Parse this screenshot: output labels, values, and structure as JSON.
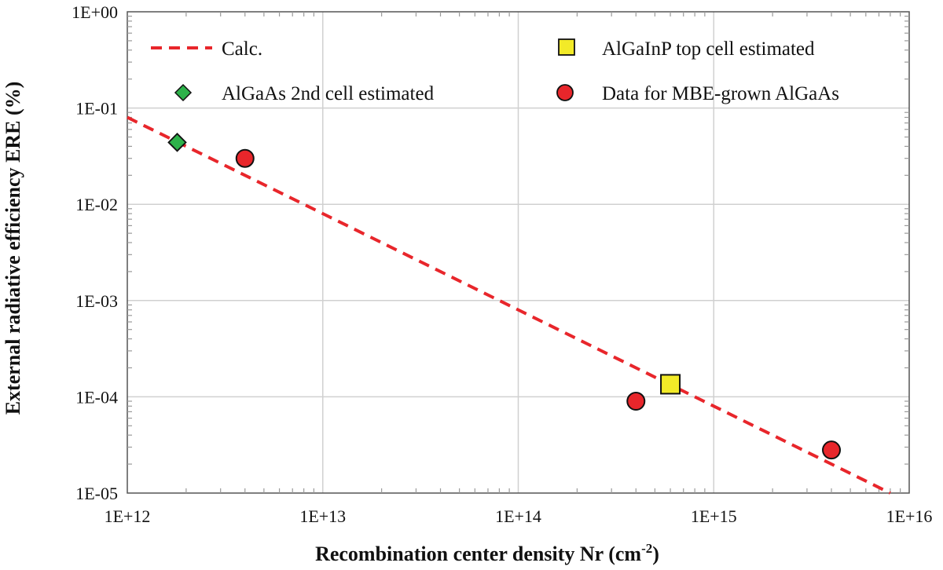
{
  "chart_data": {
    "type": "scatter",
    "title": "",
    "xlabel": "Recombination center density Nr (cm",
    "xlabel_sup": "-2",
    "xlabel_end": ")",
    "ylabel": "External radiative efficiency ERE (%)",
    "x_scale": "log",
    "y_scale": "log",
    "xlim": [
      1000000000000.0,
      1e+16
    ],
    "ylim": [
      1e-05,
      1
    ],
    "x_tick_labels": [
      "1E+12",
      "1E+13",
      "1E+14",
      "1E+15",
      "1E+16"
    ],
    "y_tick_labels": [
      "1E+00",
      "1E-01",
      "1E-02",
      "1E-03",
      "1E-04",
      "1E-05"
    ],
    "grid": true,
    "series": [
      {
        "name": "Calc.",
        "kind": "line",
        "style": "dashed",
        "color": "#e8262b",
        "x": [
          1000000000000.0,
          8000000000000000.0
        ],
        "y": [
          0.08,
          1e-05
        ]
      },
      {
        "name": "AlGaInP top cell estimated",
        "kind": "marker",
        "marker": "square",
        "color": "#f2ea28",
        "x": [
          600000000000000.0
        ],
        "y": [
          0.000135
        ]
      },
      {
        "name": "AlGaAs 2nd cell estimated",
        "kind": "marker",
        "marker": "diamond",
        "color": "#2db24a",
        "x": [
          1800000000000.0
        ],
        "y": [
          0.044
        ]
      },
      {
        "name": "Data for MBE-grown AlGaAs",
        "kind": "marker",
        "marker": "circle",
        "color": "#e8262b",
        "x": [
          4000000000000.0,
          400000000000000.0,
          4000000000000000.0
        ],
        "y": [
          0.03,
          9e-05,
          2.8e-05
        ]
      }
    ],
    "legend": {
      "placement": "top",
      "order": [
        "Calc.",
        "AlGaInP top cell estimated",
        "AlGaAs 2nd cell estimated",
        "Data for MBE-grown AlGaAs"
      ]
    }
  }
}
